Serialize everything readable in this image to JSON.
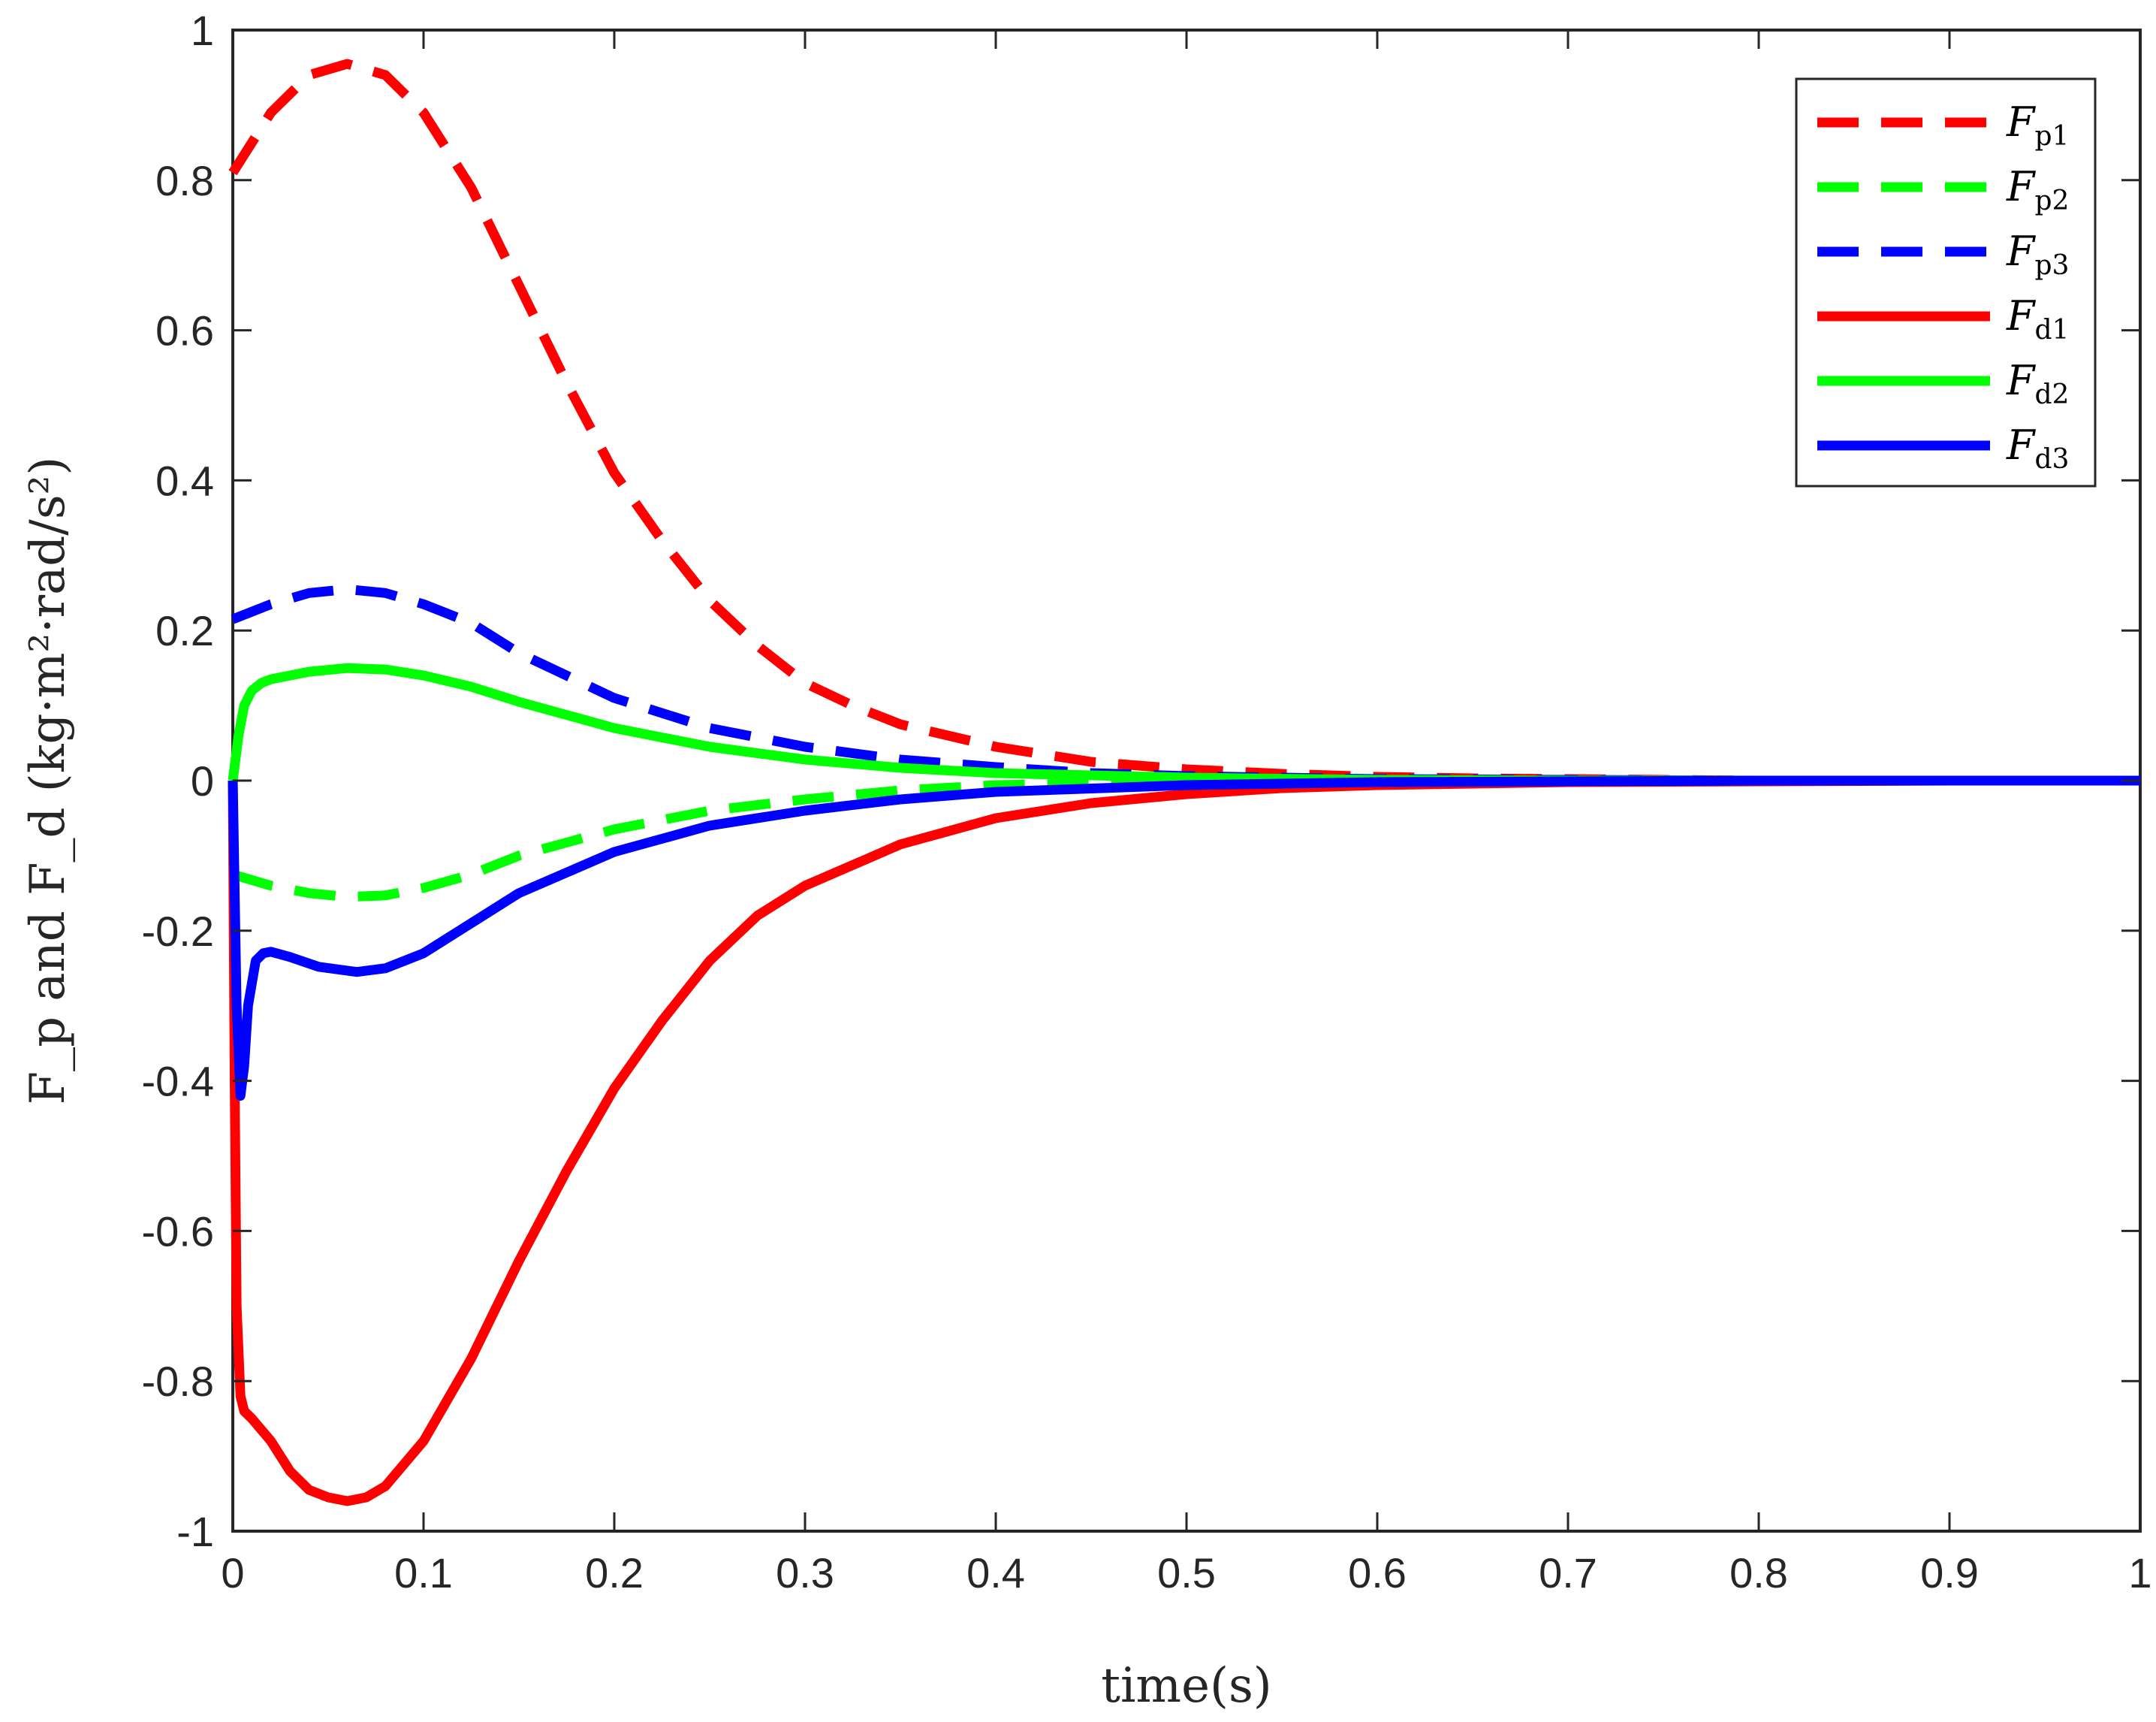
{
  "chart_data": {
    "type": "line",
    "xlabel": "time(s)",
    "ylabel": "F_p and F_d (kg·m²·rad/s²)",
    "xlim": [
      0,
      1
    ],
    "ylim": [
      -1,
      1
    ],
    "grid": false,
    "legend_placement": "top-right",
    "xticks": [
      "0",
      "0.1",
      "0.2",
      "0.3",
      "0.4",
      "0.5",
      "0.6",
      "0.7",
      "0.8",
      "0.9",
      "1"
    ],
    "yticks": [
      "-1",
      "-0.8",
      "-0.6",
      "-0.4",
      "-0.2",
      "0",
      "0.2",
      "0.4",
      "0.6",
      "0.8",
      "1"
    ],
    "series": [
      {
        "name": "Fp1",
        "label_main": "F",
        "label_sub": "p1",
        "color": "#ff0000",
        "style": "dashed",
        "x": [
          0,
          0.02,
          0.04,
          0.06,
          0.08,
          0.1,
          0.125,
          0.15,
          0.175,
          0.2,
          0.225,
          0.25,
          0.275,
          0.3,
          0.325,
          0.35,
          0.4,
          0.45,
          0.5,
          0.55,
          0.6,
          0.65,
          0.7,
          0.75,
          0.8,
          0.9,
          1.0
        ],
        "y": [
          0.81,
          0.89,
          0.94,
          0.955,
          0.94,
          0.89,
          0.79,
          0.66,
          0.53,
          0.41,
          0.32,
          0.24,
          0.18,
          0.13,
          0.1,
          0.075,
          0.045,
          0.025,
          0.015,
          0.009,
          0.005,
          0.003,
          0.002,
          0.001,
          0.0,
          0.0,
          0.0
        ]
      },
      {
        "name": "Fp2",
        "label_main": "F",
        "label_sub": "p2",
        "color": "#00ff00",
        "style": "dashed",
        "x": [
          0,
          0.02,
          0.04,
          0.06,
          0.08,
          0.1,
          0.125,
          0.15,
          0.2,
          0.25,
          0.3,
          0.35,
          0.4,
          0.5,
          0.6,
          0.7,
          0.8,
          0.9,
          1.0
        ],
        "y": [
          -0.125,
          -0.14,
          -0.15,
          -0.155,
          -0.153,
          -0.143,
          -0.125,
          -0.1,
          -0.065,
          -0.04,
          -0.025,
          -0.013,
          -0.006,
          -0.002,
          -0.001,
          0,
          0,
          0,
          0
        ]
      },
      {
        "name": "Fp3",
        "label_main": "F",
        "label_sub": "p3",
        "color": "#0000ff",
        "style": "dashed",
        "x": [
          0,
          0.02,
          0.04,
          0.06,
          0.08,
          0.1,
          0.125,
          0.15,
          0.2,
          0.25,
          0.3,
          0.35,
          0.4,
          0.45,
          0.5,
          0.6,
          0.7,
          0.8,
          0.9,
          1.0
        ],
        "y": [
          0.215,
          0.235,
          0.25,
          0.255,
          0.25,
          0.235,
          0.21,
          0.17,
          0.11,
          0.07,
          0.045,
          0.028,
          0.018,
          0.01,
          0.006,
          0.002,
          0.001,
          0,
          0,
          0
        ]
      },
      {
        "name": "Fd1",
        "label_main": "F",
        "label_sub": "d1",
        "color": "#ff0000",
        "style": "solid",
        "x": [
          0,
          0.001,
          0.002,
          0.004,
          0.006,
          0.01,
          0.02,
          0.03,
          0.04,
          0.05,
          0.06,
          0.07,
          0.08,
          0.1,
          0.125,
          0.15,
          0.175,
          0.2,
          0.225,
          0.25,
          0.275,
          0.3,
          0.35,
          0.4,
          0.45,
          0.5,
          0.55,
          0.6,
          0.7,
          0.8,
          0.9,
          1.0
        ],
        "y": [
          0,
          -0.4,
          -0.7,
          -0.82,
          -0.84,
          -0.85,
          -0.88,
          -0.92,
          -0.945,
          -0.955,
          -0.96,
          -0.955,
          -0.94,
          -0.88,
          -0.77,
          -0.64,
          -0.52,
          -0.41,
          -0.32,
          -0.24,
          -0.18,
          -0.14,
          -0.085,
          -0.05,
          -0.03,
          -0.018,
          -0.01,
          -0.006,
          -0.002,
          -0.001,
          0,
          0
        ]
      },
      {
        "name": "Fd2",
        "label_main": "F",
        "label_sub": "d2",
        "color": "#00ff00",
        "style": "solid",
        "x": [
          0,
          0.003,
          0.006,
          0.01,
          0.015,
          0.02,
          0.04,
          0.06,
          0.08,
          0.1,
          0.125,
          0.15,
          0.2,
          0.25,
          0.3,
          0.35,
          0.4,
          0.5,
          0.6,
          0.7,
          0.8,
          0.9,
          1.0
        ],
        "y": [
          0,
          0.06,
          0.1,
          0.12,
          0.13,
          0.135,
          0.145,
          0.15,
          0.148,
          0.14,
          0.125,
          0.105,
          0.07,
          0.045,
          0.028,
          0.017,
          0.01,
          0.004,
          0.001,
          0,
          0,
          0,
          0
        ]
      },
      {
        "name": "Fd3",
        "label_main": "F",
        "label_sub": "d3",
        "color": "#0000ff",
        "style": "solid",
        "x": [
          0,
          0.002,
          0.004,
          0.006,
          0.008,
          0.012,
          0.016,
          0.02,
          0.03,
          0.045,
          0.065,
          0.08,
          0.1,
          0.125,
          0.15,
          0.2,
          0.25,
          0.3,
          0.35,
          0.4,
          0.5,
          0.6,
          0.7,
          0.8,
          0.9,
          1.0
        ],
        "y": [
          0,
          -0.3,
          -0.42,
          -0.38,
          -0.3,
          -0.24,
          -0.23,
          -0.228,
          -0.235,
          -0.248,
          -0.255,
          -0.25,
          -0.23,
          -0.19,
          -0.15,
          -0.095,
          -0.06,
          -0.04,
          -0.025,
          -0.015,
          -0.006,
          -0.002,
          -0.001,
          0,
          0,
          0
        ]
      }
    ]
  }
}
